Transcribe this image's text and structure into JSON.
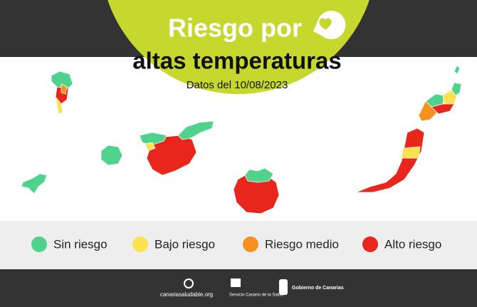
{
  "header": {
    "title_line1": "Riesgo por",
    "title_line2": "altas temperaturas",
    "subtitle": "Datos del 10/08/2023"
  },
  "legend": [
    {
      "label": "Sin riesgo",
      "color": "#4fd38c"
    },
    {
      "label": "Bajo riesgo",
      "color": "#fde24f"
    },
    {
      "label": "Riesgo medio",
      "color": "#f7901e"
    },
    {
      "label": "Alto riesgo",
      "color": "#e8261c"
    }
  ],
  "footer": {
    "logos": [
      "canariasaludable.org",
      "Servicio Canario de la Salud",
      "Gobierno de Canarias"
    ]
  }
}
